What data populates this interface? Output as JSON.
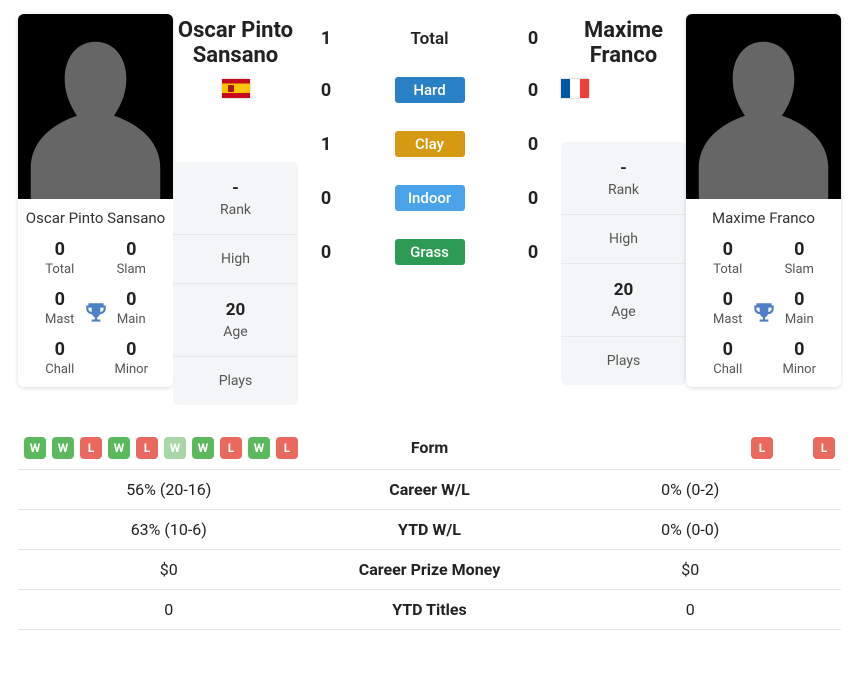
{
  "players": {
    "p1": {
      "name": "Oscar Pinto Sansano",
      "flag": "es",
      "titles": [
        {
          "label": "Total",
          "value": "0"
        },
        {
          "label": "Slam",
          "value": "0"
        },
        {
          "label": "Mast",
          "value": "0"
        },
        {
          "label": "Main",
          "value": "0"
        },
        {
          "label": "Chall",
          "value": "0"
        },
        {
          "label": "Minor",
          "value": "0"
        }
      ],
      "info": {
        "rank": {
          "value": "-",
          "label": "Rank"
        },
        "high": {
          "value": "",
          "label": "High"
        },
        "age": {
          "value": "20",
          "label": "Age"
        },
        "plays": {
          "value": "",
          "label": "Plays"
        }
      },
      "form": [
        "W",
        "W",
        "L",
        "W",
        "L",
        "Wd",
        "W",
        "L",
        "W",
        "L"
      ],
      "career_wl": "56% (20-16)",
      "ytd_wl": "63% (10-6)",
      "career_prize": "$0",
      "ytd_titles": "0"
    },
    "p2": {
      "name": "Maxime Franco",
      "flag": "fr",
      "titles": [
        {
          "label": "Total",
          "value": "0"
        },
        {
          "label": "Slam",
          "value": "0"
        },
        {
          "label": "Mast",
          "value": "0"
        },
        {
          "label": "Main",
          "value": "0"
        },
        {
          "label": "Chall",
          "value": "0"
        },
        {
          "label": "Minor",
          "value": "0"
        }
      ],
      "info": {
        "rank": {
          "value": "-",
          "label": "Rank"
        },
        "high": {
          "value": "",
          "label": "High"
        },
        "age": {
          "value": "20",
          "label": "Age"
        },
        "plays": {
          "value": "",
          "label": "Plays"
        }
      },
      "form": [
        "L",
        "L"
      ],
      "career_wl": "0% (0-2)",
      "ytd_wl": "0% (0-0)",
      "career_prize": "$0",
      "ytd_titles": "0"
    }
  },
  "h2h": [
    {
      "label": "Total",
      "p1": "1",
      "p2": "0",
      "kind": "plain"
    },
    {
      "label": "Hard",
      "p1": "0",
      "p2": "0",
      "kind": "pill",
      "color": "#2a80c4"
    },
    {
      "label": "Clay",
      "p1": "1",
      "p2": "0",
      "kind": "pill",
      "color": "#d59a12"
    },
    {
      "label": "Indoor",
      "p1": "0",
      "p2": "0",
      "kind": "pill",
      "color": "#4aa3e8"
    },
    {
      "label": "Grass",
      "p1": "0",
      "p2": "0",
      "kind": "pill",
      "color": "#2e9b55"
    }
  ],
  "cmp_rows": [
    {
      "key": "form",
      "label": "Form"
    },
    {
      "key": "career_wl",
      "label": "Career W/L"
    },
    {
      "key": "ytd_wl",
      "label": "YTD W/L"
    },
    {
      "key": "career_prize",
      "label": "Career Prize Money"
    },
    {
      "key": "ytd_titles",
      "label": "YTD Titles"
    }
  ],
  "colors": {
    "trophy": "#4f7fc6",
    "badge_w": "#5cb85c",
    "badge_wd": "#a7d6a7",
    "badge_l": "#e9695f"
  }
}
